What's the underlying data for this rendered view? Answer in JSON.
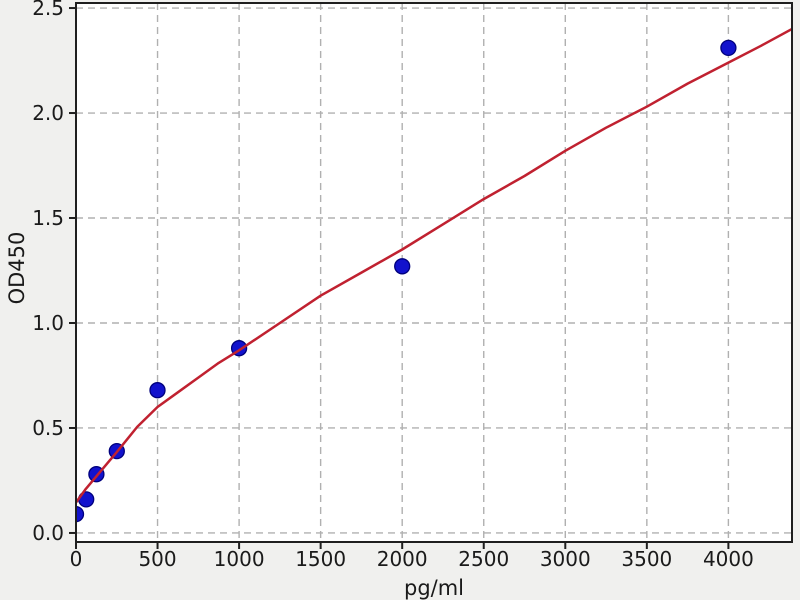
{
  "figure": {
    "background_color": "#f0f0ee",
    "plot_background_color": "#ffffff",
    "grid_color": "#b0b0b0",
    "spine_color": "#1f1f1f",
    "tick_color": "#1f1f1f",
    "tick_label_color": "#1a1a1a"
  },
  "chart_data": {
    "type": "scatter",
    "title": "",
    "xlabel": "pg/ml",
    "ylabel": "OD450",
    "xlim": [
      0,
      4390
    ],
    "ylim": [
      -0.043,
      2.524
    ],
    "grid": true,
    "grid_style": "dashed",
    "legend_position": "none",
    "x_ticks": [
      0,
      500,
      1000,
      1500,
      2000,
      2500,
      3000,
      3500,
      4000
    ],
    "x_tick_labels": [
      "0",
      "500",
      "1000",
      "1500",
      "2000",
      "2500",
      "3000",
      "3500",
      "4000"
    ],
    "y_ticks": [
      0.0,
      0.5,
      1.0,
      1.5,
      2.0,
      2.5
    ],
    "y_tick_labels": [
      "0.0",
      "0.5",
      "1.0",
      "1.5",
      "2.0",
      "2.5"
    ],
    "series": [
      {
        "name": "standard-points",
        "type": "scatter",
        "marker": "circle",
        "marker_radius": 7.5,
        "color": "#1212cd",
        "edge_color": "#00007d",
        "x": [
          0,
          62.5,
          125,
          250,
          500,
          1000,
          2000,
          4000
        ],
        "y": [
          0.09,
          0.16,
          0.28,
          0.39,
          0.68,
          0.88,
          1.27,
          2.31
        ]
      },
      {
        "name": "fit-curve",
        "type": "line",
        "color": "#c02130",
        "line_width": 2.5,
        "x": [
          0,
          60,
          125,
          190,
          250,
          375,
          500,
          625,
          750,
          875,
          1000,
          1250,
          1500,
          1750,
          2000,
          2250,
          2500,
          2750,
          3000,
          3250,
          3500,
          3750,
          4000,
          4200,
          4390
        ],
        "y": [
          0.145,
          0.21,
          0.27,
          0.33,
          0.385,
          0.505,
          0.6,
          0.67,
          0.74,
          0.81,
          0.87,
          1.0,
          1.13,
          1.24,
          1.35,
          1.47,
          1.59,
          1.7,
          1.82,
          1.93,
          2.03,
          2.14,
          2.24,
          2.32,
          2.4
        ]
      }
    ]
  }
}
